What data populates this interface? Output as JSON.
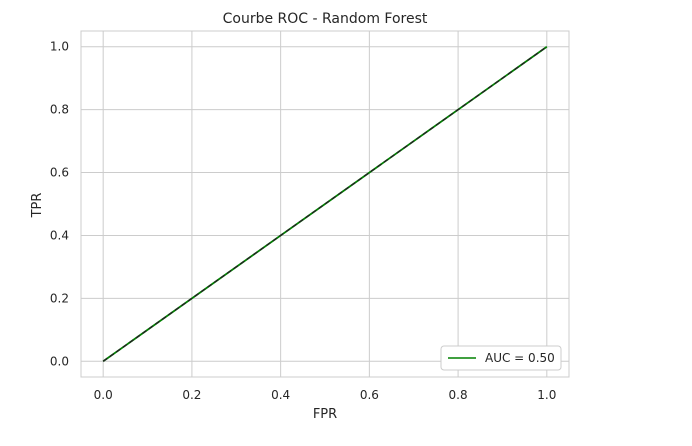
{
  "chart_data": {
    "type": "line",
    "title": "Courbe ROC - Random Forest",
    "xlabel": "FPR",
    "ylabel": "TPR",
    "xlim": [
      -0.05,
      1.05
    ],
    "ylim": [
      -0.05,
      1.05
    ],
    "xticks": [
      "0.0",
      "0.2",
      "0.4",
      "0.6",
      "0.8",
      "1.0"
    ],
    "yticks": [
      "0.0",
      "0.2",
      "0.4",
      "0.6",
      "0.8",
      "1.0"
    ],
    "grid": true,
    "legend_position": "lower-right",
    "series": [
      {
        "name": "AUC = 0.50",
        "x": [
          0,
          1
        ],
        "y": [
          0,
          1
        ],
        "color": "#008000",
        "style": "solid"
      },
      {
        "x": [
          0,
          1
        ],
        "y": [
          0,
          1
        ],
        "color": "#222222",
        "style": "dashed"
      }
    ]
  }
}
